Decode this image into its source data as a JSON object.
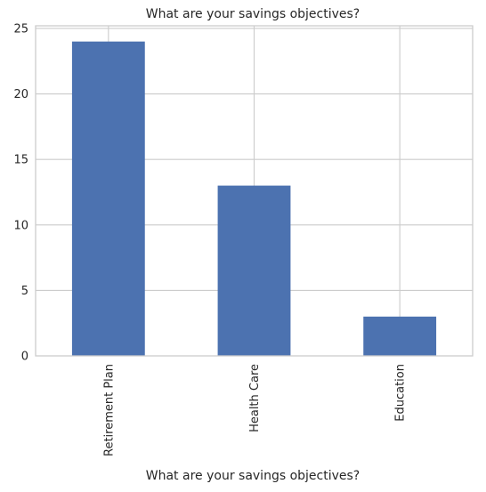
{
  "chart_data": {
    "type": "bar",
    "title": "What are your savings objectives?",
    "xlabel": "What are your savings objectives?",
    "ylabel": "",
    "categories": [
      "Retirement Plan",
      "Health Care",
      "Education"
    ],
    "values": [
      24,
      13,
      3
    ],
    "ylim": [
      0,
      25.2
    ],
    "yticks": [
      0,
      5,
      10,
      15,
      20,
      25
    ],
    "grid": true,
    "bar_color": "#4c72b0",
    "grid_color": "#cccccc"
  }
}
